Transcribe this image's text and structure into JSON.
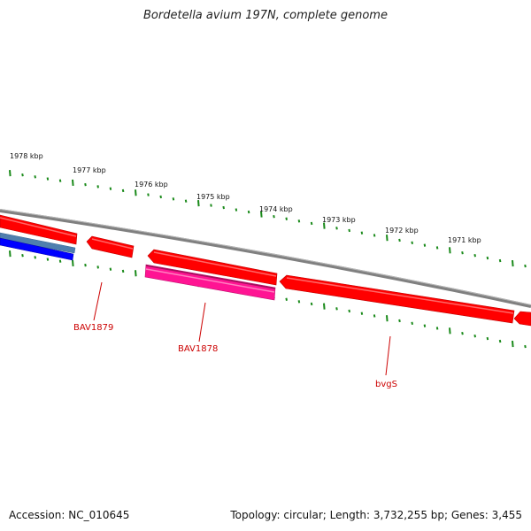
{
  "title": "Bordetella avium 197N, complete genome",
  "footer": {
    "accession": "Accession: NC_010645",
    "summary": "Topology: circular; Length: 3,732,255 bp; Genes: 3,455"
  },
  "colors": {
    "backbone": "#808080",
    "forward_gene": "#ff0000",
    "reverse_gene_blue": "#0000ff",
    "reverse_gene_steel": "#4f7fae",
    "reverse_gene_magenta": "#ff1493",
    "tick": "#1a8a1a",
    "label": "#cc0000"
  },
  "kbp_labels": [
    "1978 kbp",
    "1977 kbp",
    "1976 kbp",
    "1975 kbp",
    "1974 kbp",
    "1973 kbp",
    "1972 kbp",
    "1971 kbp"
  ],
  "gene_labels": [
    "BAV1879",
    "BAV1878",
    "bvgS"
  ]
}
